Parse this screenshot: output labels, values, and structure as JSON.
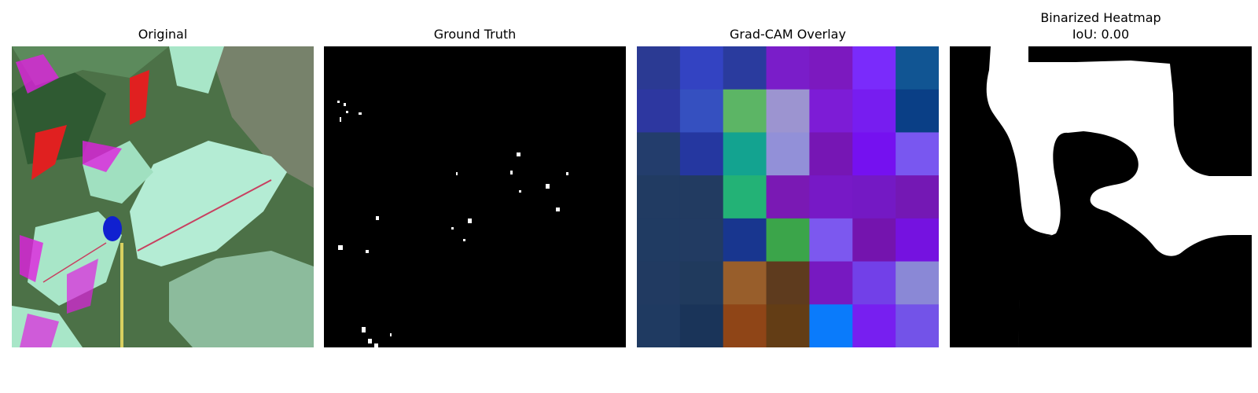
{
  "panels": {
    "original": {
      "title": "Original"
    },
    "ground_truth": {
      "title": "Ground Truth"
    },
    "gradcam": {
      "title": "Grad-CAM Overlay",
      "grid_colors": [
        [
          "#2b3a93",
          "#3343c2",
          "#2a3b9e",
          "#7a1dc9",
          "#7c19bf",
          "#7a2bfb",
          "#115593"
        ],
        [
          "#2d37a0",
          "#3550c0",
          "#5cb565",
          "#9c94d0",
          "#7d1cd6",
          "#771df0",
          "#0a3f86"
        ],
        [
          "#233d6c",
          "#2537a0",
          "#13a390",
          "#9290d8",
          "#7616b4",
          "#7511f0",
          "#7957f0"
        ],
        [
          "#213b62",
          "#223b61",
          "#23b276",
          "#7a19b4",
          "#7719c6",
          "#7419c4",
          "#7418b4"
        ],
        [
          "#203b62",
          "#223b62",
          "#18368f",
          "#3ba54a",
          "#7c58ef",
          "#7414ae",
          "#7512e0"
        ],
        [
          "#213a61",
          "#203a5d",
          "#985e2b",
          "#5e3b1e",
          "#7719c1",
          "#7240e8",
          "#8a88d6"
        ],
        [
          "#1f3a61",
          "#1a3459",
          "#8f4517",
          "#633d15",
          "#0a7bfb",
          "#771ff0",
          "#7353e8"
        ]
      ]
    },
    "binarized": {
      "title_line1": "Binarized Heatmap",
      "title_line2": "IoU: 0.00"
    }
  },
  "colors": {
    "mask_bg": "#000000",
    "mask_fg": "#ffffff",
    "leaf": "#a8e6c8",
    "foliage": "#3f6b3a",
    "magenta": "#e020e0",
    "red": "#e02020",
    "blue": "#1020d0"
  }
}
